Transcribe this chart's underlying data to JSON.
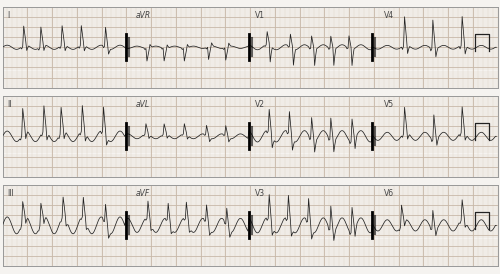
{
  "background_color": "#f5f3f0",
  "grid_major_color": "#c8b8a8",
  "grid_minor_color": "#e0d4c8",
  "line_color": "#222222",
  "border_color": "#999999",
  "figsize": [
    5.0,
    2.74
  ],
  "dpi": 100,
  "rows": [
    {
      "sublabels": [
        "I",
        "aVR",
        "V1",
        "V4"
      ]
    },
    {
      "sublabels": [
        "II",
        "aVL",
        "V2",
        "V5"
      ]
    },
    {
      "sublabels": [
        "III",
        "aVF",
        "V3",
        "V6"
      ]
    }
  ]
}
